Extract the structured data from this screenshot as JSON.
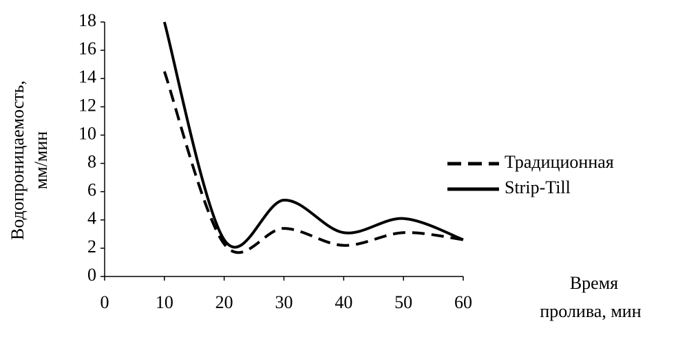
{
  "chart_data": {
    "type": "line",
    "y_label": [
      "Водопроницаемость,",
      "мм/мин"
    ],
    "x_label": [
      "Время",
      "пролива, мин"
    ],
    "x": [
      10,
      20,
      30,
      40,
      50,
      60
    ],
    "series": [
      {
        "name": "Традиционная",
        "color": "#000000",
        "dash": true,
        "values": [
          14.5,
          2.3,
          3.4,
          2.2,
          3.1,
          2.6
        ]
      },
      {
        "name": "Strip-Till",
        "color": "#000000",
        "dash": false,
        "values": [
          18,
          2.6,
          5.4,
          3.1,
          4.1,
          2.6
        ]
      }
    ],
    "xlim": [
      0,
      60
    ],
    "xticks": [
      0,
      10,
      20,
      30,
      40,
      50,
      60
    ],
    "ylim": [
      0,
      18
    ],
    "yticks": [
      0,
      2,
      4,
      6,
      8,
      10,
      12,
      14,
      16,
      18
    ],
    "smooth": true,
    "grid": false,
    "legend": "right"
  }
}
